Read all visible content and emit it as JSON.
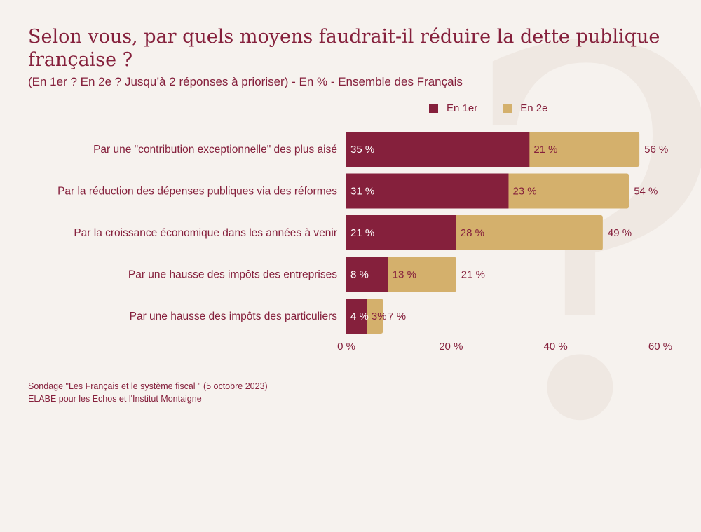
{
  "header": {
    "title": "Selon vous, par quels moyens faudrait-il réduire la dette publique française ?",
    "subtitle": "(En 1er ? En 2e ? Jusqu’à 2 réponses à prioriser) - En % - Ensemble des Français"
  },
  "decoration": {
    "glyph": "?"
  },
  "colors": {
    "first": "#85203c",
    "second": "#d4b06c",
    "text": "#85203c",
    "background": "#f6f2ee"
  },
  "chart_data": {
    "type": "bar",
    "orientation": "horizontal",
    "stacked": true,
    "categories": [
      "Par une \"contribution exceptionnelle\" des plus aisé",
      "Par la réduction des dépenses publiques via des réformes",
      "Par la croissance économique dans les années à venir",
      "Par une hausse des impôts des entreprises",
      "Par une hausse des impôts des particuliers"
    ],
    "series": [
      {
        "name": "En 1er",
        "values": [
          35,
          31,
          21,
          8,
          4
        ],
        "labels": [
          "35 %",
          "31 %",
          "21 %",
          "8 %",
          "4 %"
        ]
      },
      {
        "name": "En 2e",
        "values": [
          21,
          23,
          28,
          13,
          3
        ],
        "labels": [
          "21 %",
          "23 %",
          "28 %",
          "13 %",
          "3%"
        ]
      }
    ],
    "totals": [
      56,
      54,
      49,
      21,
      7
    ],
    "total_labels": [
      "56 %",
      "54 %",
      "49 %",
      "21 %",
      "7 %"
    ],
    "xlim": [
      0,
      60
    ],
    "ticks": [
      0,
      20,
      40,
      60
    ],
    "tick_labels": [
      "0 %",
      "20 %",
      "40 %",
      "60 %"
    ],
    "legend_position": "top-right",
    "grid": false
  },
  "footer": {
    "source_line1": "Sondage \"Les Français et le système fiscal \" (5 octobre 2023)",
    "source_line2": "ELABE pour les Echos et l'Institut Montaigne"
  }
}
